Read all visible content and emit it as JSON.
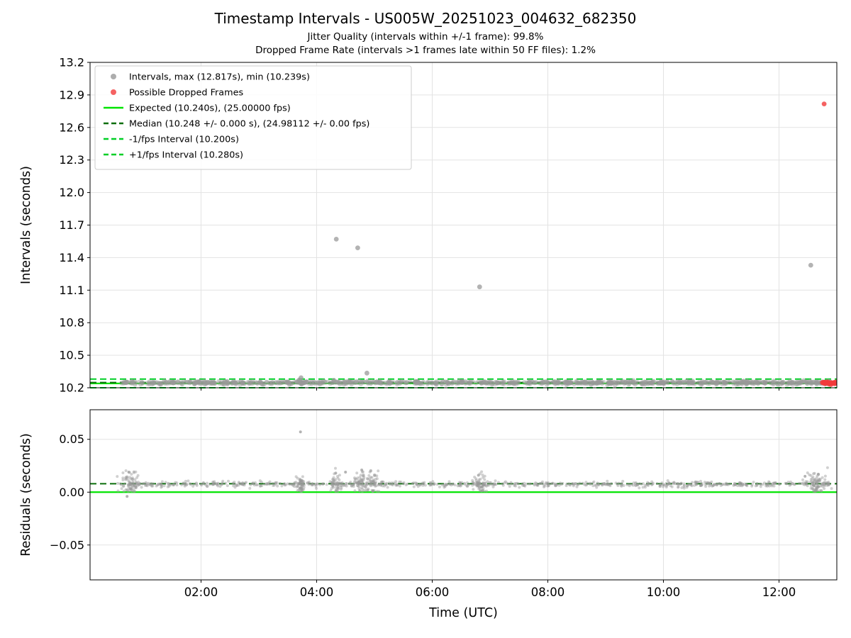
{
  "figure": {
    "title": "Timestamp Intervals - US005W_20251023_004632_682350",
    "subtitle_line1": "Jitter Quality (intervals within +/-1 frame): 99.8%",
    "subtitle_line2": "Dropped Frame Rate (intervals >1 frames late within 50 FF files): 1.2%"
  },
  "colors": {
    "point_gray": "#999999",
    "point_red": "#f23b3b",
    "expected_line": "#00e400",
    "median_line": "#0b6e0b",
    "fps_line": "#00cf26",
    "grid": "#e3e3e3",
    "axis": "#000000",
    "legend_border": "#cccccc"
  },
  "chart_data": [
    {
      "id": "intervals",
      "type": "scatter",
      "ylabel": "Intervals (seconds)",
      "ylim": [
        10.2,
        13.2
      ],
      "ytick_values": [
        10.2,
        10.5,
        10.8,
        11.1,
        11.4,
        11.7,
        12.0,
        12.3,
        12.6,
        12.9,
        13.2
      ],
      "ytick_labels": [
        "10.2",
        "10.5",
        "10.8",
        "11.1",
        "11.4",
        "11.7",
        "12.0",
        "12.3",
        "12.6",
        "12.9",
        "13.2"
      ],
      "xlim_hours": [
        0.08,
        13.0
      ],
      "xtick_hours": [
        2,
        4,
        6,
        8,
        10,
        12
      ],
      "xtick_labels": [
        "02:00",
        "04:00",
        "06:00",
        "08:00",
        "10:00",
        "12:00"
      ],
      "grid": true,
      "legend_position": "upper-left",
      "legend": [
        {
          "label": "Intervals, max (12.817s), min (10.239s)",
          "marker": "dot",
          "color_key": "point_gray"
        },
        {
          "label": "Possible Dropped Frames",
          "marker": "dot",
          "color_key": "point_red"
        },
        {
          "label": "Expected (10.240s), (25.00000 fps)",
          "marker": "solid-line",
          "color_key": "expected_line"
        },
        {
          "label": "Median (10.248 +/- 0.000 s), (24.98112 +/- 0.00 fps)",
          "marker": "dashed-line",
          "color_key": "median_line"
        },
        {
          "label": "-1/fps Interval (10.200s)",
          "marker": "dashed-line",
          "color_key": "fps_line"
        },
        {
          "label": "+1/fps Interval (10.280s)",
          "marker": "dashed-line",
          "color_key": "fps_line"
        }
      ],
      "reference_lines": [
        {
          "name": "expected",
          "value": 10.24,
          "style": "solid",
          "color_key": "expected_line",
          "width": 2.2
        },
        {
          "name": "median",
          "value": 10.248,
          "style": "dashed",
          "color_key": "median_line",
          "width": 2
        },
        {
          "name": "minus-1fps-interval",
          "value": 10.2,
          "style": "dashed",
          "color_key": "fps_line",
          "width": 2
        },
        {
          "name": "plus-1fps-interval",
          "value": 10.28,
          "style": "dashed",
          "color_key": "fps_line",
          "width": 2
        }
      ],
      "series": [
        {
          "name": "interval-band",
          "kind": "band",
          "color_key": "point_gray",
          "t_range": [
            0.62,
            12.9
          ],
          "center": 10.247,
          "spread": 0.007,
          "count": 850
        },
        {
          "name": "dropped-frames-band",
          "kind": "band",
          "color_key": "point_red",
          "t_range": [
            12.74,
            12.99
          ],
          "center": 10.243,
          "spread": 0.006,
          "count": 45
        }
      ],
      "points_gray": [
        [
          4.34,
          11.57
        ],
        [
          4.71,
          11.49
        ],
        [
          6.82,
          11.13
        ],
        [
          12.55,
          11.33
        ],
        [
          3.73,
          10.292
        ],
        [
          4.87,
          10.335
        ],
        [
          3.7,
          10.272
        ],
        [
          4.3,
          10.268
        ]
      ],
      "points_red": [
        [
          12.78,
          12.817
        ]
      ],
      "stats": {
        "max_s": 12.817,
        "min_s": 10.239,
        "expected_s": 10.24,
        "expected_fps": 25.0,
        "median_s": 10.248,
        "median_fps": 24.98112,
        "minus_1fps_s": 10.2,
        "plus_1fps_s": 10.28,
        "jitter_quality_pct": 99.8,
        "dropped_frame_rate_pct": 1.2
      }
    },
    {
      "id": "residuals",
      "type": "scatter",
      "ylabel": "Residuals (seconds)",
      "xlabel": "Time (UTC)",
      "ylim": [
        -0.083,
        0.078
      ],
      "ytick_values": [
        -0.05,
        0.0,
        0.05
      ],
      "ytick_labels": [
        "−0.05",
        "0.00",
        "0.05"
      ],
      "xlim_hours": [
        0.08,
        13.0
      ],
      "xtick_hours": [
        2,
        4,
        6,
        8,
        10,
        12
      ],
      "xtick_labels": [
        "02:00",
        "04:00",
        "06:00",
        "08:00",
        "10:00",
        "12:00"
      ],
      "grid": true,
      "reference_lines": [
        {
          "name": "expected-residual",
          "value": 0.0,
          "style": "solid",
          "color_key": "expected_line",
          "width": 2.2
        },
        {
          "name": "median-residual",
          "value": 0.008,
          "style": "dashed",
          "color_key": "median_line",
          "width": 2
        }
      ],
      "series": [
        {
          "name": "residual-baseline",
          "kind": "band",
          "color_key": "point_gray",
          "t_range": [
            0.62,
            12.9
          ],
          "center": 0.0075,
          "spread": 0.0012,
          "count": 750
        },
        {
          "name": "cluster-0045",
          "kind": "cluster",
          "color_key": "point_gray",
          "t_center": 0.78,
          "t_spread": 0.18,
          "v_center": 0.008,
          "v_spread": 0.006,
          "count": 70
        },
        {
          "name": "cluster-0345",
          "kind": "cluster",
          "color_key": "point_gray",
          "t_center": 3.72,
          "t_spread": 0.07,
          "v_center": 0.008,
          "v_spread": 0.005,
          "count": 55
        },
        {
          "name": "cluster-0420",
          "kind": "cluster",
          "color_key": "point_gray",
          "t_center": 4.33,
          "t_spread": 0.09,
          "v_center": 0.008,
          "v_spread": 0.005,
          "count": 45
        },
        {
          "name": "cluster-0445",
          "kind": "cluster",
          "color_key": "point_gray",
          "t_center": 4.78,
          "t_spread": 0.13,
          "v_center": 0.008,
          "v_spread": 0.006,
          "count": 55
        },
        {
          "name": "cluster-0500",
          "kind": "cluster",
          "color_key": "point_gray",
          "t_center": 4.98,
          "t_spread": 0.08,
          "v_center": 0.009,
          "v_spread": 0.006,
          "count": 35
        },
        {
          "name": "cluster-0650",
          "kind": "cluster",
          "color_key": "point_gray",
          "t_center": 6.84,
          "t_spread": 0.1,
          "v_center": 0.008,
          "v_spread": 0.005,
          "count": 45
        },
        {
          "name": "cluster-1230",
          "kind": "cluster",
          "color_key": "point_gray",
          "t_center": 12.62,
          "t_spread": 0.2,
          "v_center": 0.008,
          "v_spread": 0.005,
          "count": 70
        }
      ],
      "points_gray": [
        [
          3.72,
          0.057
        ],
        [
          0.72,
          -0.004
        ],
        [
          0.75,
          0.019
        ],
        [
          4.5,
          0.019
        ],
        [
          4.78,
          0.021
        ],
        [
          6.8,
          0.016
        ],
        [
          4.33,
          0.018
        ],
        [
          12.68,
          0.017
        ],
        [
          12.45,
          0.015
        ]
      ],
      "points_red": []
    }
  ]
}
